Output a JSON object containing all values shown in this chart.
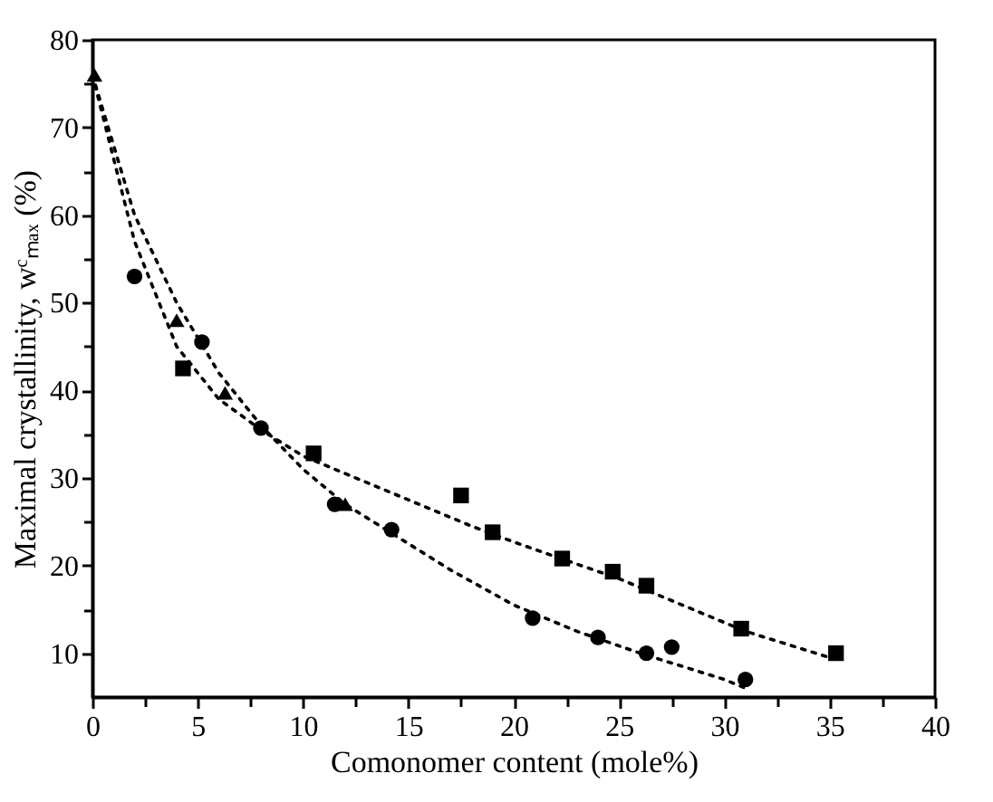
{
  "chart_data": {
    "type": "scatter",
    "xlabel": "Comonomer content (mole%)",
    "ylabel": "Maximal crystallinity, wᶜₘₐₓ (%)",
    "xlim": [
      0,
      40
    ],
    "ylim": [
      5,
      80
    ],
    "xticks": [
      0,
      {
        "value": 2.5,
        "label": null
      },
      5,
      {
        "value": 7.5,
        "label": null
      },
      10,
      {
        "value": 12.5,
        "label": null
      },
      15,
      {
        "value": 17.5,
        "label": null
      },
      20,
      {
        "value": 22.5,
        "label": null
      },
      25,
      {
        "value": 27.5,
        "label": null
      },
      30,
      {
        "value": 32.5,
        "label": null
      },
      35,
      {
        "value": 37.5,
        "label": null
      },
      40
    ],
    "yticks": [
      10,
      {
        "value": 15,
        "label": null
      },
      20,
      {
        "value": 25,
        "label": null
      },
      30,
      {
        "value": 35,
        "label": null
      },
      40,
      {
        "value": 45,
        "label": null
      },
      50,
      {
        "value": 55,
        "label": null
      },
      60,
      {
        "value": 65,
        "label": null
      },
      70,
      {
        "value": 75,
        "label": null
      },
      80
    ],
    "grid": false,
    "series": [
      {
        "type": "line",
        "line_style": "dotted",
        "marker": "none",
        "color": "#000000",
        "x": [
          0,
          2,
          4,
          6,
          8,
          10,
          12,
          15,
          18,
          20,
          22,
          25,
          28,
          31,
          33,
          35
        ],
        "values": [
          76,
          57,
          45,
          39,
          35.5,
          32.5,
          30.5,
          27.5,
          24.5,
          22.7,
          21,
          18.5,
          15.5,
          12.5,
          11,
          9.5
        ]
      },
      {
        "type": "line",
        "line_style": "dotted",
        "marker": "none",
        "color": "#000000",
        "x": [
          0,
          2,
          4,
          6,
          8,
          10,
          12,
          14,
          17,
          20,
          23,
          26,
          28,
          30,
          31
        ],
        "values": [
          76,
          60,
          50,
          42,
          36,
          31,
          27,
          24,
          19.5,
          15.5,
          12.5,
          10,
          8.5,
          7,
          6
        ]
      },
      {
        "type": "scatter",
        "marker": "square",
        "color": "#000000",
        "x": [
          4.3,
          10.5,
          17.5,
          19,
          22.3,
          24.7,
          26.3,
          30.8,
          35.3
        ],
        "values": [
          42.5,
          32.8,
          28,
          23.8,
          20.8,
          19.3,
          17.7,
          12.8,
          10
        ]
      },
      {
        "type": "scatter",
        "marker": "circle",
        "color": "#000000",
        "x": [
          2,
          5.2,
          8,
          11.5,
          14.2,
          20.9,
          24,
          26.3,
          27.5,
          31
        ],
        "values": [
          53,
          45.5,
          35.7,
          27,
          24.1,
          14,
          11.8,
          10,
          10.7,
          7
        ]
      },
      {
        "type": "scatter",
        "marker": "triangle",
        "color": "#000000",
        "x": [
          0.1,
          4,
          6.3,
          12
        ],
        "values": [
          76,
          48,
          39.7,
          27
        ]
      }
    ]
  }
}
